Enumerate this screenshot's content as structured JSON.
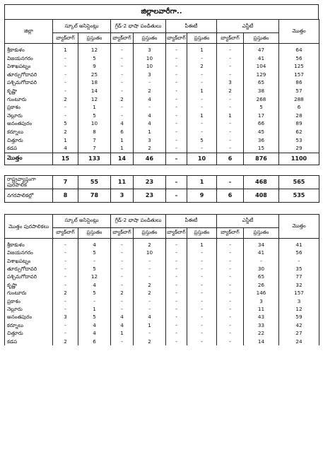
{
  "title": "జిల్లాలవారీగా..",
  "headers": {
    "district": "జిల్లా",
    "municipalities": "మొత్తం పురపాలికలు",
    "groups": [
      "స్కూల్ అసిస్టెంట్లు",
      "గ్రేడ్-2 భాషా పండితులు",
      "పీఈటీ",
      "ఎస్జీటీ"
    ],
    "total": "మొత్తం",
    "backlog": "బ్యాక్‌లాగ్",
    "current": "ప్రస్తుతం"
  },
  "table1": {
    "rows": [
      {
        "name": "శ్రీకాకుళం",
        "v": [
          "1",
          "12",
          "-",
          "3",
          "-",
          "1",
          "-",
          "47",
          "64"
        ]
      },
      {
        "name": "విజయనగరం",
        "v": [
          "-",
          "5",
          "-",
          "10",
          "-",
          "-",
          "-",
          "41",
          "56"
        ]
      },
      {
        "name": "విశాఖపట్నం",
        "v": [
          "-",
          "9",
          "-",
          "10",
          "-",
          "2",
          "-",
          "104",
          "125"
        ]
      },
      {
        "name": "తూర్పుగోదావరి",
        "v": [
          "-",
          "25",
          "-",
          "3",
          "-",
          "-",
          "-",
          "129",
          "157"
        ]
      },
      {
        "name": "పశ్చిమగోదావరి",
        "v": [
          "-",
          "18",
          "-",
          "-",
          "-",
          "-",
          "3",
          "65",
          "86"
        ]
      },
      {
        "name": "కృష్ణా",
        "v": [
          "-",
          "14",
          "-",
          "2",
          "-",
          "1",
          "2",
          "38",
          "57"
        ]
      },
      {
        "name": "గుంటూరు",
        "v": [
          "2",
          "12",
          "2",
          "4",
          "-",
          "-",
          "-",
          "268",
          "288"
        ]
      },
      {
        "name": "ప్రకాశం",
        "v": [
          "-",
          "1",
          "-",
          "-",
          "-",
          "-",
          "-",
          "5",
          "6"
        ]
      },
      {
        "name": "నెల్లూరు",
        "v": [
          "-",
          "5",
          "-",
          "4",
          "-",
          "1",
          "1",
          "17",
          "28"
        ]
      },
      {
        "name": "అనంతపురం",
        "v": [
          "5",
          "10",
          "4",
          "4",
          "-",
          "-",
          "-",
          "66",
          "89"
        ]
      },
      {
        "name": "కర్నూలు",
        "v": [
          "2",
          "8",
          "6",
          "1",
          "-",
          "-",
          "-",
          "45",
          "62"
        ]
      },
      {
        "name": "చిత్తూరు",
        "v": [
          "1",
          "7",
          "1",
          "3",
          "-",
          "5",
          "-",
          "36",
          "53"
        ]
      },
      {
        "name": "కడప",
        "v": [
          "4",
          "7",
          "1",
          "2",
          "-",
          "-",
          "-",
          "15",
          "29"
        ]
      }
    ],
    "total": {
      "name": "మొత్తం",
      "v": [
        "15",
        "133",
        "14",
        "46",
        "–",
        "10",
        "6",
        "876",
        "1100"
      ]
    }
  },
  "table2": {
    "rows": [
      {
        "name": "రాష్ట్రవ్యాప్తంగా పురపాలిక",
        "v": [
          "7",
          "55",
          "11",
          "23",
          "–",
          "1",
          "–",
          "468",
          "565"
        ]
      },
      {
        "name": "నగరపాలికల్లో",
        "v": [
          "8",
          "78",
          "3",
          "23",
          "–",
          "9",
          "6",
          "408",
          "535"
        ]
      }
    ]
  },
  "table3": {
    "rows": [
      {
        "name": "శ్రీకాకుళం",
        "v": [
          "-",
          "4",
          "-",
          "2",
          "-",
          "1",
          "-",
          "34",
          "41"
        ]
      },
      {
        "name": "విజయనగరం",
        "v": [
          "-",
          "5",
          "-",
          "10",
          "-",
          "-",
          "-",
          "41",
          "56"
        ]
      },
      {
        "name": "విశాఖపట్నం",
        "v": [
          "-",
          "-",
          "-",
          "-",
          "-",
          "-",
          "-",
          "-",
          "-"
        ]
      },
      {
        "name": "తూర్పుగోదావరి",
        "v": [
          "-",
          "5",
          "-",
          "-",
          "-",
          "-",
          "-",
          "30",
          "35"
        ]
      },
      {
        "name": "పశ్చిమగోదావరి",
        "v": [
          "-",
          "12",
          "-",
          "-",
          "-",
          "-",
          "-",
          "65",
          "77"
        ]
      },
      {
        "name": "కృష్ణా",
        "v": [
          "-",
          "4",
          "-",
          "2",
          "-",
          "-",
          "-",
          "26",
          "32"
        ]
      },
      {
        "name": "గుంటూరు",
        "v": [
          "2",
          "5",
          "2",
          "2",
          "-",
          "-",
          "-",
          "146",
          "157"
        ]
      },
      {
        "name": "ప్రకాశం",
        "v": [
          "-",
          "-",
          "-",
          "-",
          "-",
          "-",
          "-",
          "3",
          "3"
        ]
      },
      {
        "name": "నెల్లూరు",
        "v": [
          "-",
          "1",
          "-",
          "-",
          "-",
          "-",
          "-",
          "11",
          "12"
        ]
      },
      {
        "name": "అనంతపురం",
        "v": [
          "3",
          "5",
          "4",
          "4",
          "-",
          "-",
          "-",
          "43",
          "59"
        ]
      },
      {
        "name": "కర్నూలు",
        "v": [
          "-",
          "4",
          "4",
          "1",
          "-",
          "-",
          "-",
          "33",
          "42"
        ]
      },
      {
        "name": "చిత్తూరు",
        "v": [
          "-",
          "4",
          "1",
          "-",
          "-",
          "-",
          "-",
          "22",
          "27"
        ]
      },
      {
        "name": "కడప",
        "v": [
          "2",
          "6",
          "-",
          "2",
          "-",
          "-",
          "-",
          "14",
          "24"
        ]
      }
    ]
  }
}
